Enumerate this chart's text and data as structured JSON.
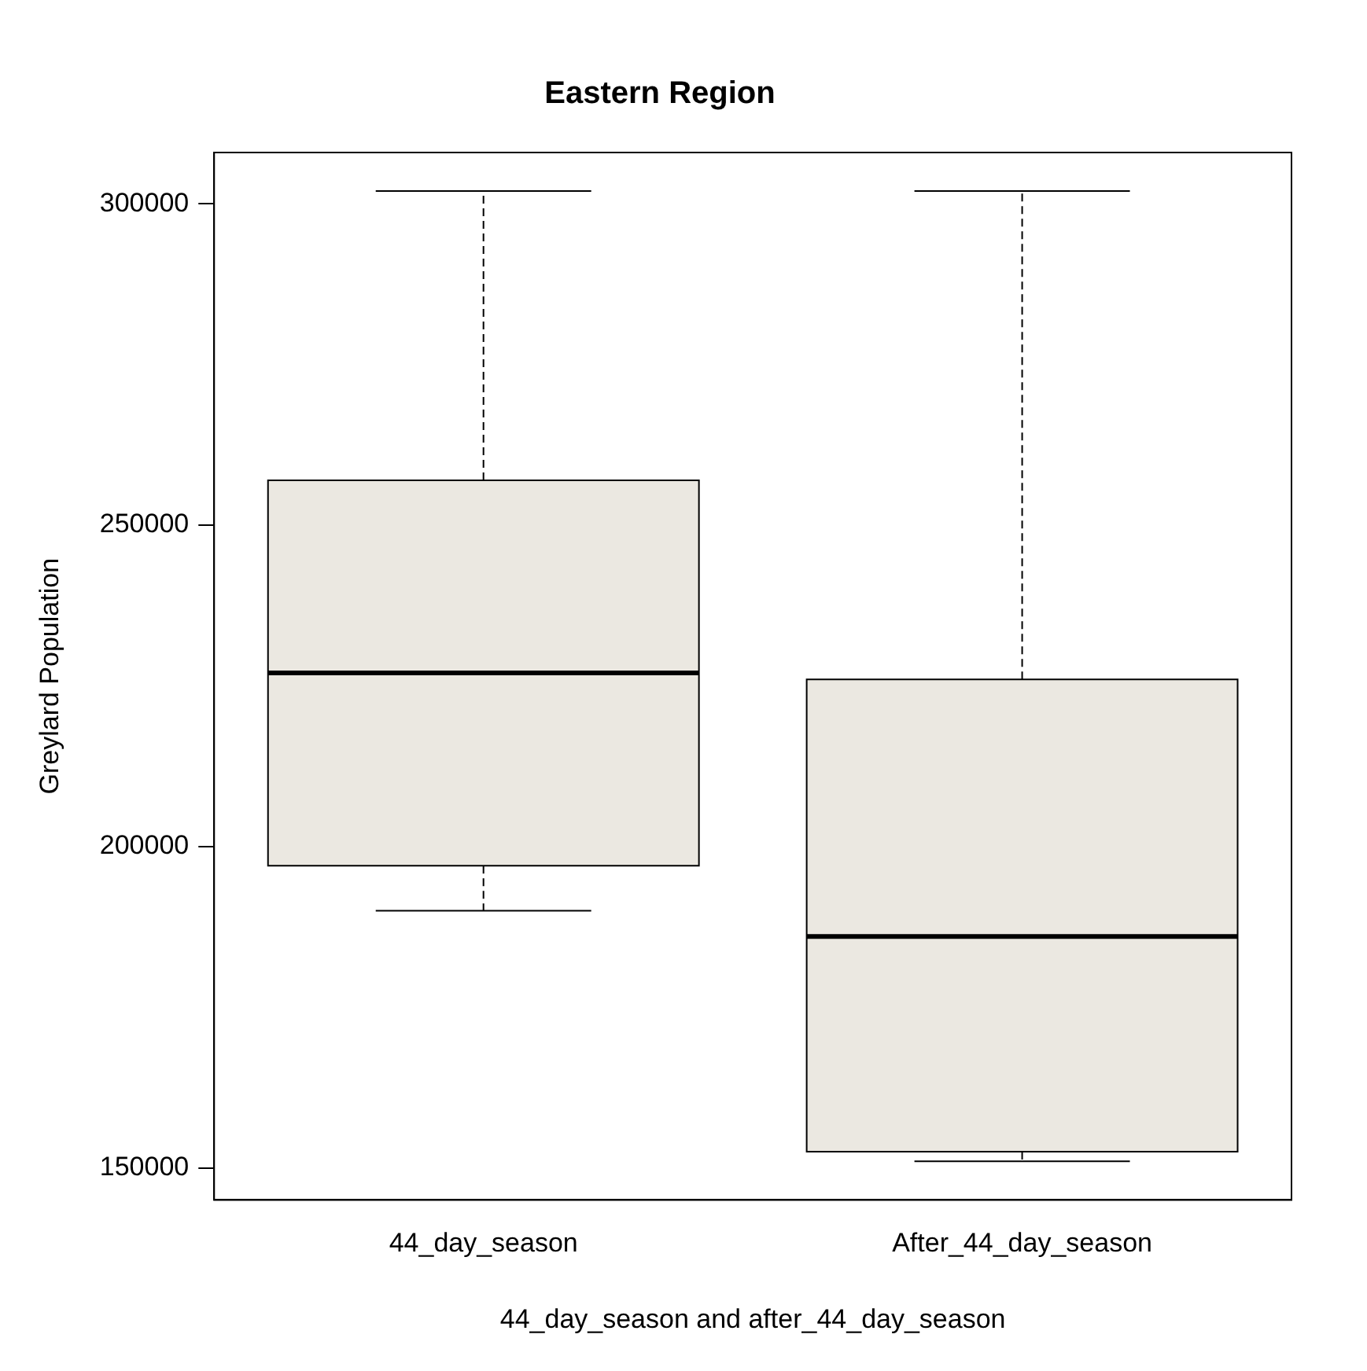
{
  "chart_data": {
    "type": "box",
    "title": "Eastern Region",
    "xlabel": "44_day_season and after_44_day_season",
    "ylabel": "Greylard Population",
    "categories": [
      "44_day_season",
      "After_44_day_season"
    ],
    "color": "#ebe8e1",
    "ylim": [
      145000,
      308000
    ],
    "yticks": [
      150000,
      200000,
      250000,
      300000
    ],
    "grid": false,
    "boxes": [
      {
        "low": 190000,
        "q1": 197000,
        "median": 227000,
        "q3": 257000,
        "high": 302000
      },
      {
        "low": 151000,
        "q1": 152500,
        "median": 186000,
        "q3": 226000,
        "high": 302000
      }
    ]
  }
}
